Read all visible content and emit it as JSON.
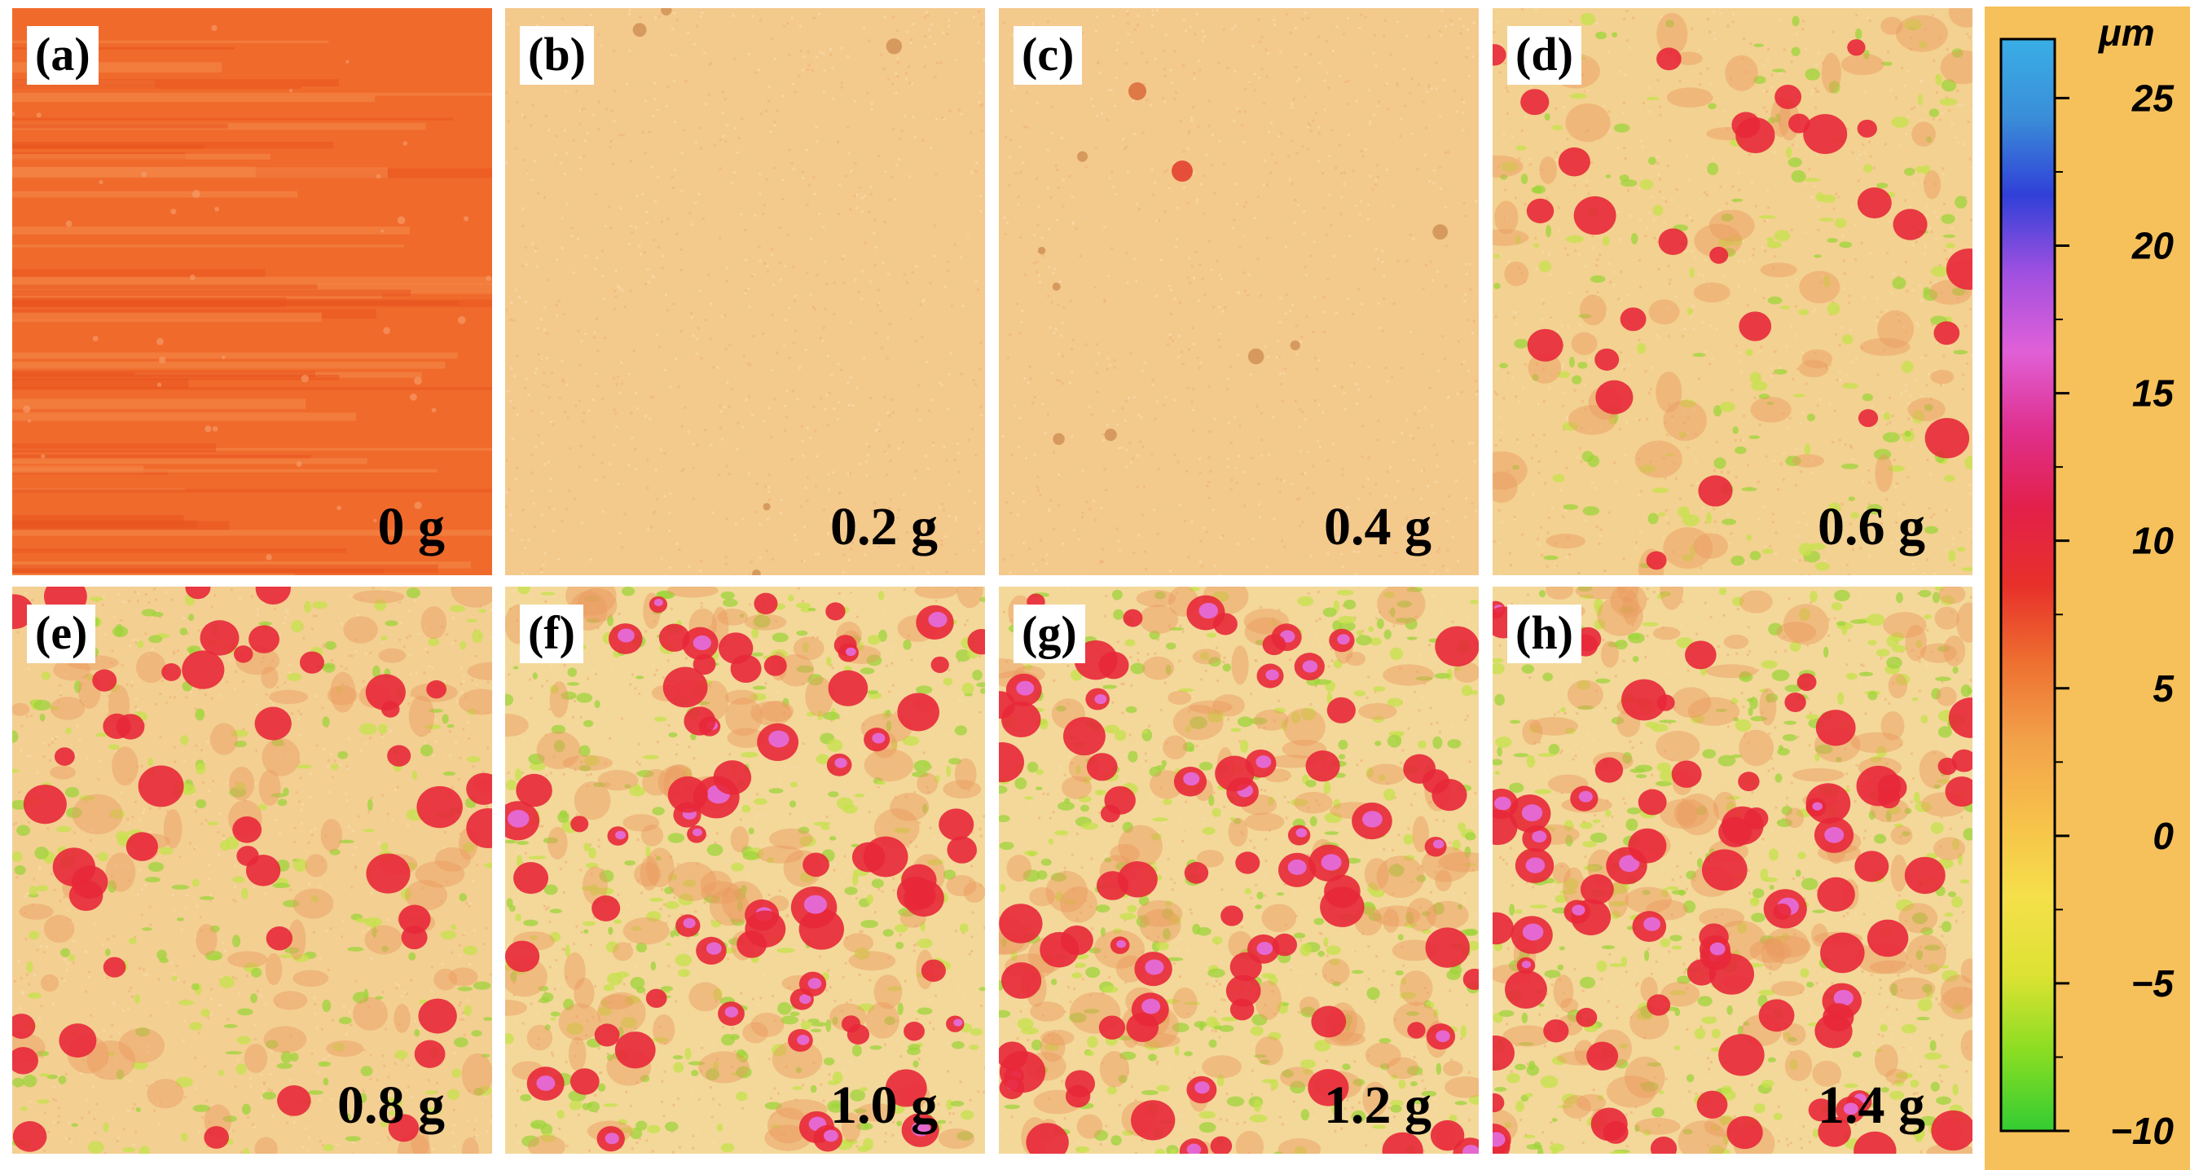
{
  "panels": [
    {
      "id": "a",
      "label": "(a)",
      "mass": "0 g",
      "base": "#f06a2c",
      "style": "stripes",
      "seed": 11,
      "density": 0
    },
    {
      "id": "b",
      "label": "(b)",
      "mass": "0.2 g",
      "base": "#f4c98c",
      "style": "grain",
      "seed": 23,
      "density": 0.02
    },
    {
      "id": "c",
      "label": "(c)",
      "mass": "0.4 g",
      "base": "#f4c98c",
      "style": "grain",
      "seed": 37,
      "density": 0.04
    },
    {
      "id": "d",
      "label": "(d)",
      "mass": "0.6 g",
      "base": "#f3d190",
      "style": "rough",
      "seed": 51,
      "density": 0.25
    },
    {
      "id": "e",
      "label": "(e)",
      "mass": "0.8 g",
      "base": "#f3cf92",
      "style": "rough",
      "seed": 67,
      "density": 0.5
    },
    {
      "id": "f",
      "label": "(f)",
      "mass": "1.0 g",
      "base": "#f3d89a",
      "style": "rough",
      "seed": 79,
      "density": 0.85
    },
    {
      "id": "g",
      "label": "(g)",
      "mass": "1.2 g",
      "base": "#f3d89a",
      "style": "rough",
      "seed": 91,
      "density": 0.95
    },
    {
      "id": "h",
      "label": "(h)",
      "mass": "1.4 g",
      "base": "#f3d89a",
      "style": "rough",
      "seed": 103,
      "density": 1.0
    }
  ],
  "colorbar": {
    "unit": "μm",
    "min": -10,
    "max": 27,
    "ticks": [
      {
        "value": 25,
        "label": "25"
      },
      {
        "value": 20,
        "label": "20"
      },
      {
        "value": 15,
        "label": "15"
      },
      {
        "value": 10,
        "label": "10"
      },
      {
        "value": 5,
        "label": "5"
      },
      {
        "value": 0,
        "label": "0"
      },
      {
        "value": -5,
        "label": "−5"
      },
      {
        "value": -10,
        "label": "−10"
      }
    ],
    "colors": [
      "#33cc33",
      "#88dd22",
      "#dde233",
      "#f5e04a",
      "#f7c04a",
      "#f2a24a",
      "#ee7030",
      "#e8302a",
      "#e2204a",
      "#e0308e",
      "#e060d8",
      "#a050e0",
      "#3040d8",
      "#3a8ed8",
      "#3aaee6"
    ]
  }
}
